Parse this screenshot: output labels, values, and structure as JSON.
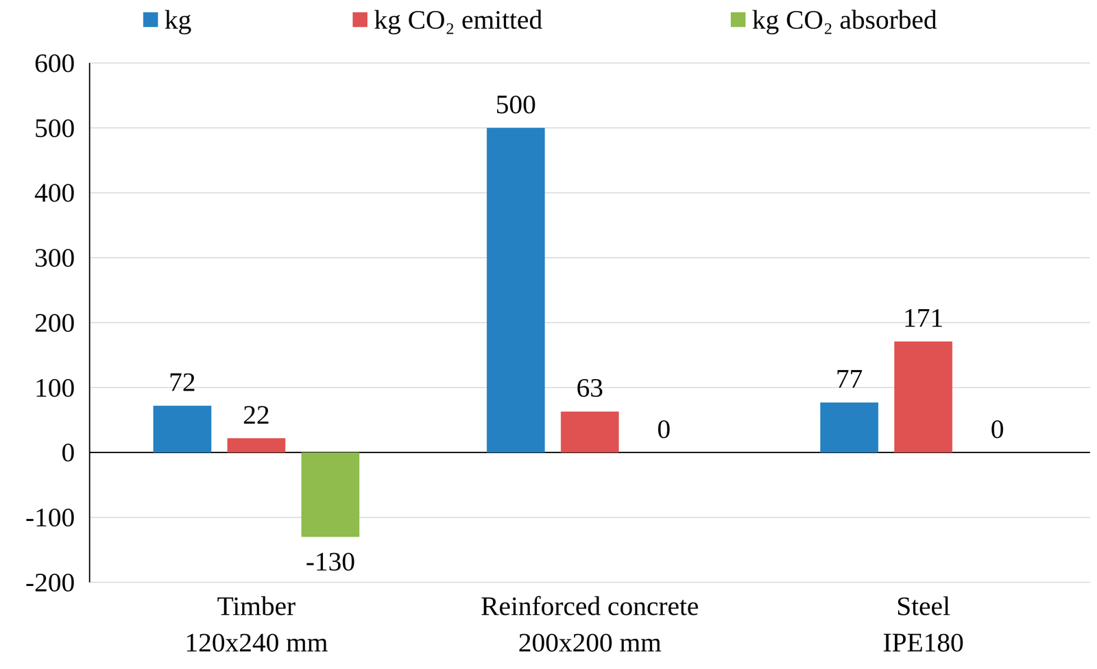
{
  "chart_data": {
    "type": "bar",
    "categories": [
      "Timber\n120x240 mm",
      "Reinforced concrete\n200x200 mm",
      "Steel\nIPE180"
    ],
    "series": [
      {
        "name": "kg",
        "color": "#2681c2",
        "values": [
          72,
          500,
          77
        ]
      },
      {
        "name": "kg CO₂ emitted",
        "color": "#e05252",
        "values": [
          22,
          63,
          171
        ]
      },
      {
        "name": "kg CO₂ absorbed",
        "color": "#8fbc4d",
        "values": [
          -130,
          0,
          0
        ]
      }
    ],
    "ylim": [
      -200,
      600
    ],
    "yticks": [
      -200,
      -100,
      0,
      100,
      200,
      300,
      400,
      500,
      600
    ],
    "grid": true,
    "data_labels": true,
    "legend": "top"
  }
}
